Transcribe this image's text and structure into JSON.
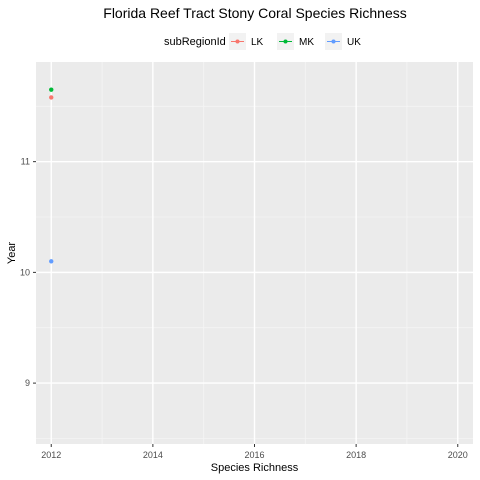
{
  "chart_data": {
    "type": "scatter",
    "title": "Florida Reef Tract Stony Coral Species Richness",
    "xlabel": "Species Richness",
    "ylabel": "Year",
    "xlim": [
      2011.7,
      2020.3
    ],
    "ylim": [
      8.45,
      11.9
    ],
    "x_ticks": [
      2012,
      2014,
      2016,
      2018,
      2020
    ],
    "x_tick_labels": [
      "2012",
      "2014",
      "2016",
      "2018",
      "2020"
    ],
    "y_ticks": [
      9,
      10,
      11
    ],
    "y_tick_labels": [
      "9",
      "10",
      "11"
    ],
    "grid": true,
    "legend": {
      "title": "subRegionId",
      "position": "top"
    },
    "series": [
      {
        "name": "LK",
        "color": "#F8766D",
        "points": [
          {
            "x": 2012,
            "y": 11.58
          }
        ]
      },
      {
        "name": "MK",
        "color": "#00BA38",
        "points": [
          {
            "x": 2012,
            "y": 11.65
          }
        ]
      },
      {
        "name": "UK",
        "color": "#619CFF",
        "points": [
          {
            "x": 2012,
            "y": 10.1
          }
        ]
      }
    ]
  }
}
